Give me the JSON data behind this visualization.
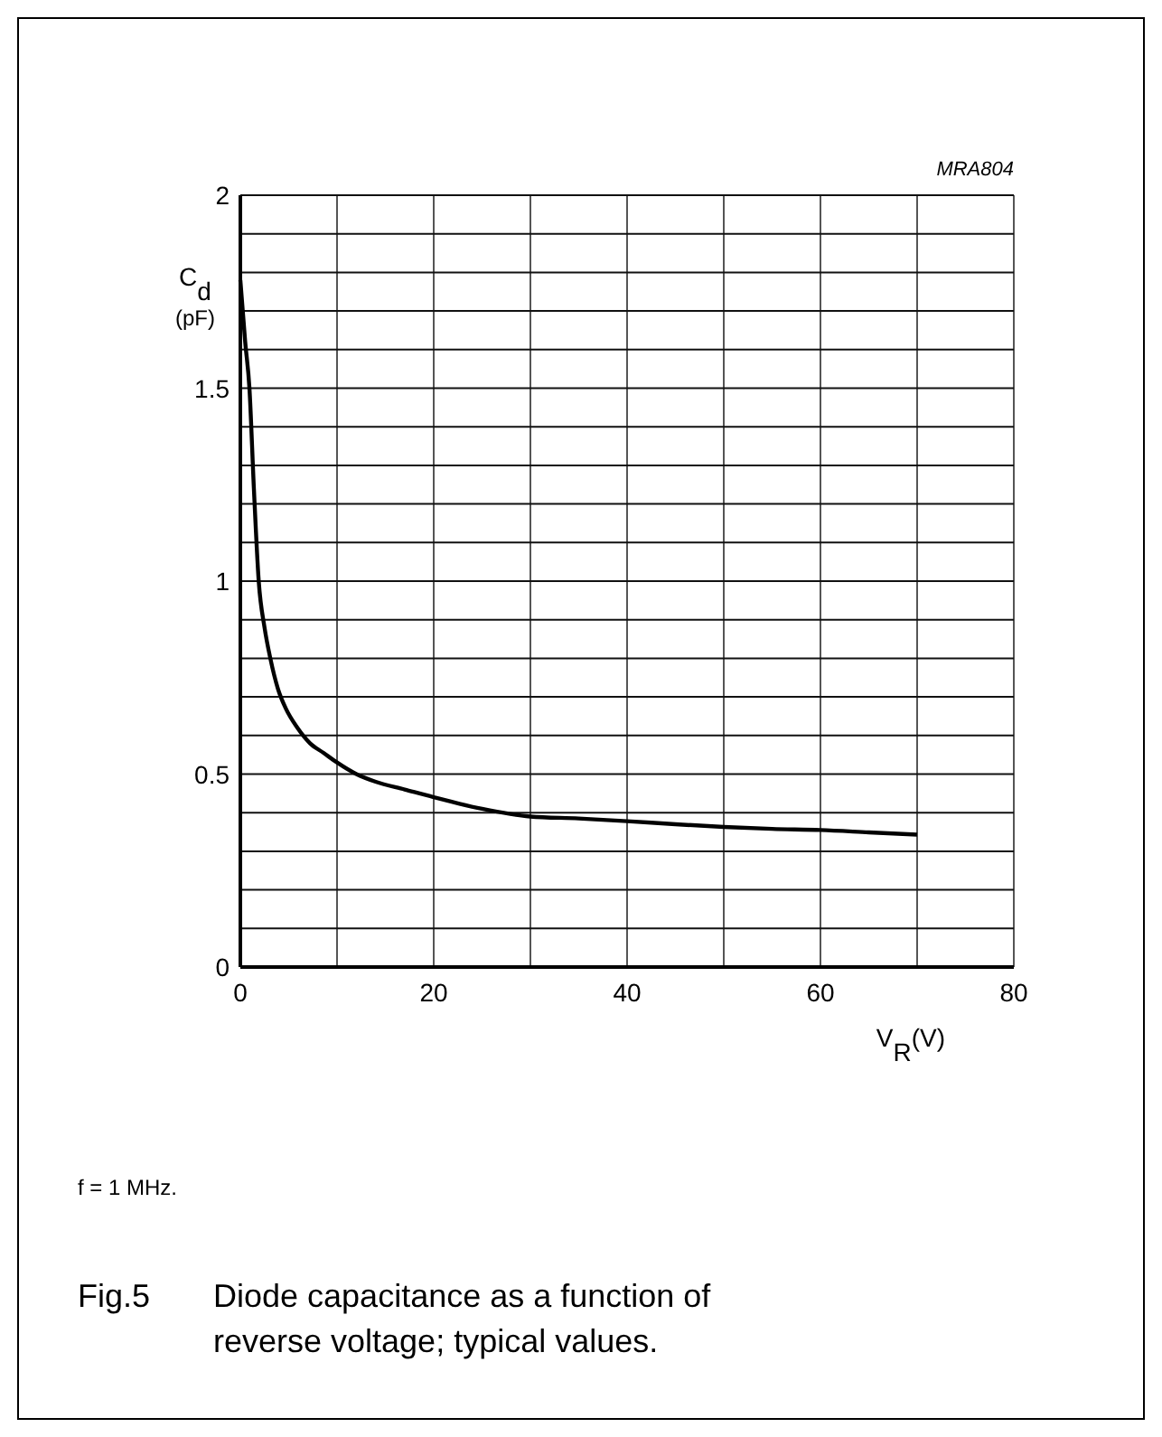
{
  "chart_data": {
    "type": "line",
    "title": "Fig.5    Diode capacitance as a function of reverse voltage; typical values.",
    "xlabel": "V$_{R}$(V)",
    "ylabel": "C$_{d}$\n(pF)",
    "annotations": [
      "MRA804",
      "f = 1 MHz."
    ],
    "x": [
      0,
      0.5,
      0.94,
      1.4,
      1.9,
      2.5,
      3.1,
      3.9,
      4.7,
      5.9,
      7.2,
      8.6,
      10,
      12,
      14,
      17,
      20,
      25,
      30,
      35,
      40,
      45,
      50,
      55,
      60,
      65,
      70
    ],
    "series": [
      {
        "color": "#000000",
        "values": [
          1.78,
          1.62,
          1.5,
          1.24,
          1.0,
          0.88,
          0.8,
          0.72,
          0.67,
          0.62,
          0.58,
          0.555,
          0.53,
          0.5,
          0.48,
          0.46,
          0.44,
          0.41,
          0.39,
          0.385,
          0.378,
          0.37,
          0.363,
          0.358,
          0.355,
          0.349,
          0.343
        ]
      }
    ],
    "xlim": [
      0,
      80
    ],
    "ylim": [
      0,
      2
    ],
    "xticks": [
      0,
      {
        "value": 10,
        "label": null
      },
      20,
      {
        "value": 30,
        "label": null
      },
      40,
      {
        "value": 50,
        "label": null
      },
      60,
      {
        "value": 70,
        "label": null
      },
      80
    ],
    "yticks": [
      0,
      {
        "value": 0.1,
        "label": null
      },
      {
        "value": 0.2,
        "label": null
      },
      {
        "value": 0.3,
        "label": null
      },
      {
        "value": 0.4,
        "label": null
      },
      0.5,
      {
        "value": 0.6,
        "label": null
      },
      {
        "value": 0.7,
        "label": null
      },
      {
        "value": 0.8,
        "label": null
      },
      {
        "value": 0.9,
        "label": null
      },
      1,
      {
        "value": 1.1,
        "label": null
      },
      {
        "value": 1.2,
        "label": null
      },
      {
        "value": 1.3,
        "label": null
      },
      {
        "value": 1.4,
        "label": null
      },
      1.5,
      {
        "value": 1.6,
        "label": null
      },
      {
        "value": 1.7,
        "label": null
      },
      {
        "value": 1.8,
        "label": null
      },
      {
        "value": 1.9,
        "label": null
      },
      2
    ],
    "grid": true,
    "marker": "none",
    "line_style": "solid"
  }
}
